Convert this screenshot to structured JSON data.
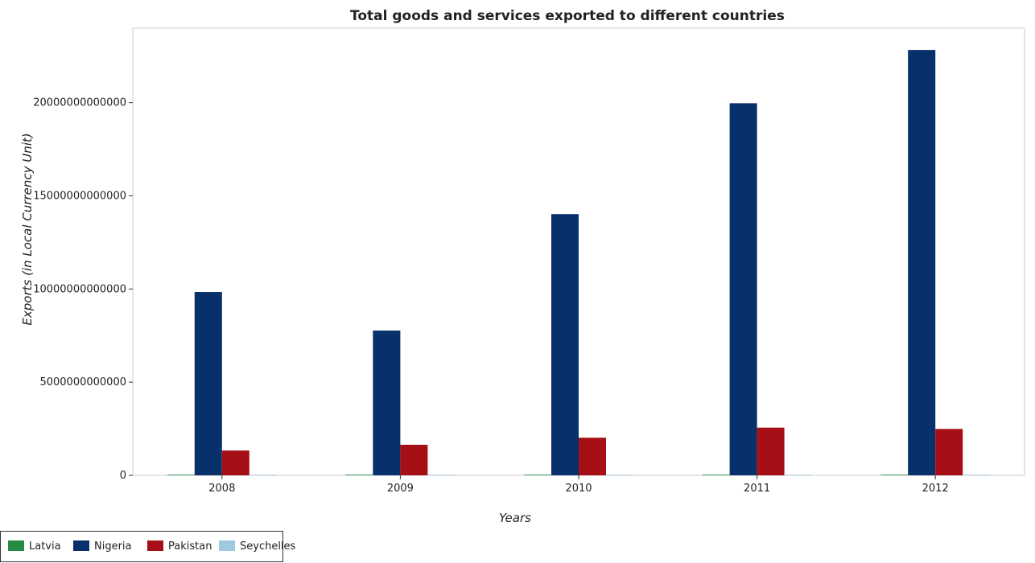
{
  "chart_data": {
    "type": "bar",
    "title": "Total goods and services exported to different countries",
    "xlabel": "Years",
    "ylabel": "Exports (in Local Currency Unit)",
    "categories": [
      "2008",
      "2009",
      "2010",
      "2011",
      "2012"
    ],
    "ylim": [
      0,
      24000000000000
    ],
    "yticks": [
      0,
      5000000000000,
      10000000000000,
      15000000000000,
      20000000000000
    ],
    "ytick_labels": [
      "0",
      "5000000000000",
      "10000000000000",
      "15000000000000",
      "20000000000000"
    ],
    "series": [
      {
        "name": "Latvia",
        "color": "#238b45",
        "values": [
          9000000000,
          7800000000,
          9000000000,
          10200000000,
          11100000000
        ]
      },
      {
        "name": "Nigeria",
        "color": "#08306b",
        "values": [
          9840000000000,
          7770000000000,
          14020000000000,
          19970000000000,
          22830000000000
        ]
      },
      {
        "name": "Pakistan",
        "color": "#a50f15",
        "values": [
          1330000000000,
          1640000000000,
          2020000000000,
          2560000000000,
          2490000000000
        ]
      },
      {
        "name": "Seychelles",
        "color": "#9ecae1",
        "values": [
          6000000000,
          7500000000,
          7800000000,
          9000000000,
          10500000000
        ]
      }
    ],
    "legend_position": "bottom-left",
    "grid": false
  }
}
